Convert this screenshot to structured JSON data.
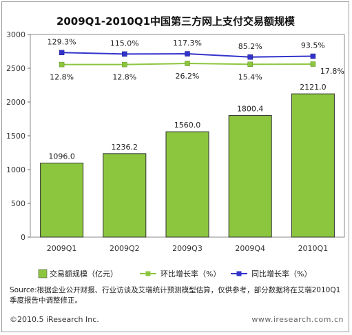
{
  "chart_data": {
    "type": "bar",
    "title": "2009Q1-2010Q1中国第三方网上支付交易额规模",
    "categories": [
      "2009Q1",
      "2009Q2",
      "2009Q3",
      "2009Q4",
      "2010Q1"
    ],
    "bar_series": {
      "name": "交易额规模（亿元）",
      "values": [
        1096.0,
        1236.2,
        1560.0,
        1800.4,
        2121.0
      ],
      "labels": [
        "1096.0",
        "1236.2",
        "1560.0",
        "1800.4",
        "2121.0"
      ],
      "color": "#8cc63f"
    },
    "line_series": [
      {
        "name": "环比增长率（%）",
        "values": [
          12.8,
          12.8,
          26.2,
          15.4,
          17.8
        ],
        "labels": [
          "12.8%",
          "12.8%",
          "26.2%",
          "15.4%",
          "17.8%"
        ],
        "color": "#8cc63f",
        "marker": "square"
      },
      {
        "name": "同比增长率（%）",
        "values": [
          129.3,
          115.0,
          117.3,
          85.2,
          93.5
        ],
        "labels": [
          "129.3%",
          "115.0%",
          "117.3%",
          "85.2%",
          "93.5%"
        ],
        "color": "#3333cc",
        "marker": "square"
      }
    ],
    "ylim": [
      0,
      3000
    ],
    "yticks": [
      0,
      500,
      1000,
      1500,
      2000,
      2500,
      3000
    ],
    "grid": false,
    "legend_position": "bottom"
  },
  "footer": {
    "source": "Source:根据企业公开财报、行业访谈及艾瑞统计预测模型估算，仅供参考，部分数据将在艾瑞2010Q1季度报告中调整修正。",
    "copyright": "©2010.5 iResearch Inc.",
    "website": "www.iresearch.com.cn"
  }
}
